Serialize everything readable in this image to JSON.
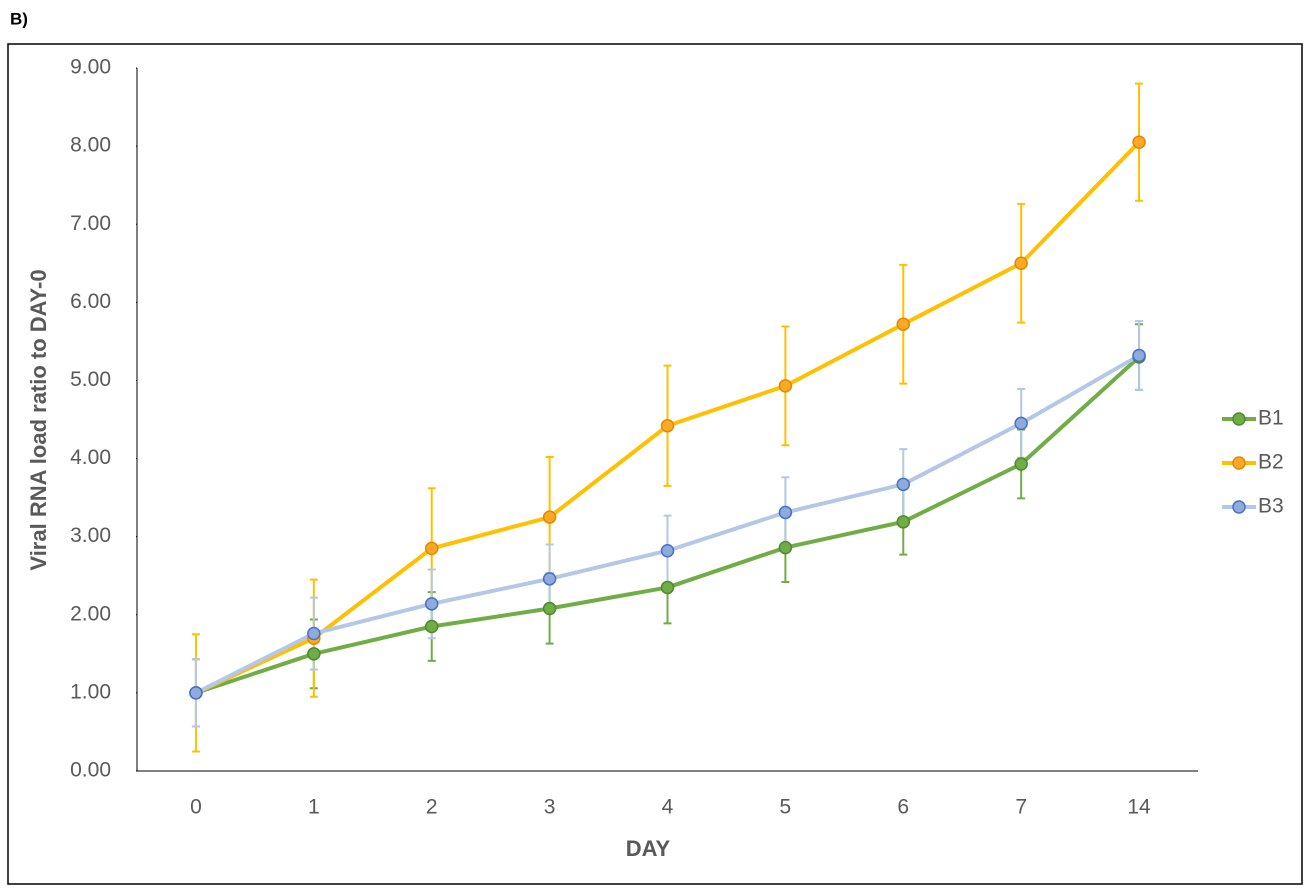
{
  "chart_data": {
    "type": "line",
    "title": "B)",
    "x_label": "DAY",
    "y_label": "Viral RNA load ratio to DAY-0",
    "categories": [
      "0",
      "1",
      "2",
      "3",
      "4",
      "5",
      "6",
      "7",
      "14"
    ],
    "series": [
      {
        "name": "B1",
        "color": "#70ad47",
        "marker_color": "#70ad47",
        "edge_color": "#4e8a2c",
        "values": [
          1.0,
          1.5,
          1.85,
          2.08,
          2.35,
          2.86,
          3.19,
          3.93,
          5.3
        ],
        "errors": [
          0.43,
          0.44,
          0.44,
          0.45,
          0.46,
          0.44,
          0.42,
          0.44,
          0.42
        ]
      },
      {
        "name": "B2",
        "color": "#ffc000",
        "marker_color": "#ffa726",
        "edge_color": "#e08a00",
        "values": [
          1.0,
          1.7,
          2.85,
          3.25,
          4.42,
          4.93,
          5.72,
          6.5,
          8.05
        ],
        "errors": [
          0.75,
          0.75,
          0.77,
          0.77,
          0.77,
          0.76,
          0.76,
          0.76,
          0.75
        ]
      },
      {
        "name": "B3",
        "color": "#b4c7e7",
        "marker_color": "#8faadc",
        "edge_color": "#4472c4",
        "values": [
          1.0,
          1.76,
          2.14,
          2.46,
          2.82,
          3.31,
          3.67,
          4.45,
          5.32
        ],
        "errors": [
          0.43,
          0.46,
          0.44,
          0.44,
          0.45,
          0.45,
          0.45,
          0.44,
          0.44
        ]
      }
    ],
    "ylim": [
      0,
      9
    ],
    "yticks": [
      {
        "value": 0,
        "label": "0.00"
      },
      {
        "value": 1,
        "label": "1.00"
      },
      {
        "value": 2,
        "label": "2.00"
      },
      {
        "value": 3,
        "label": "3.00"
      },
      {
        "value": 4,
        "label": "4.00"
      },
      {
        "value": 5,
        "label": "5.00"
      },
      {
        "value": 6,
        "label": "6.00"
      },
      {
        "value": 7,
        "label": "7.00"
      },
      {
        "value": 8,
        "label": "8.00"
      },
      {
        "value": 9,
        "label": "9.00"
      }
    ],
    "legend": "right"
  }
}
